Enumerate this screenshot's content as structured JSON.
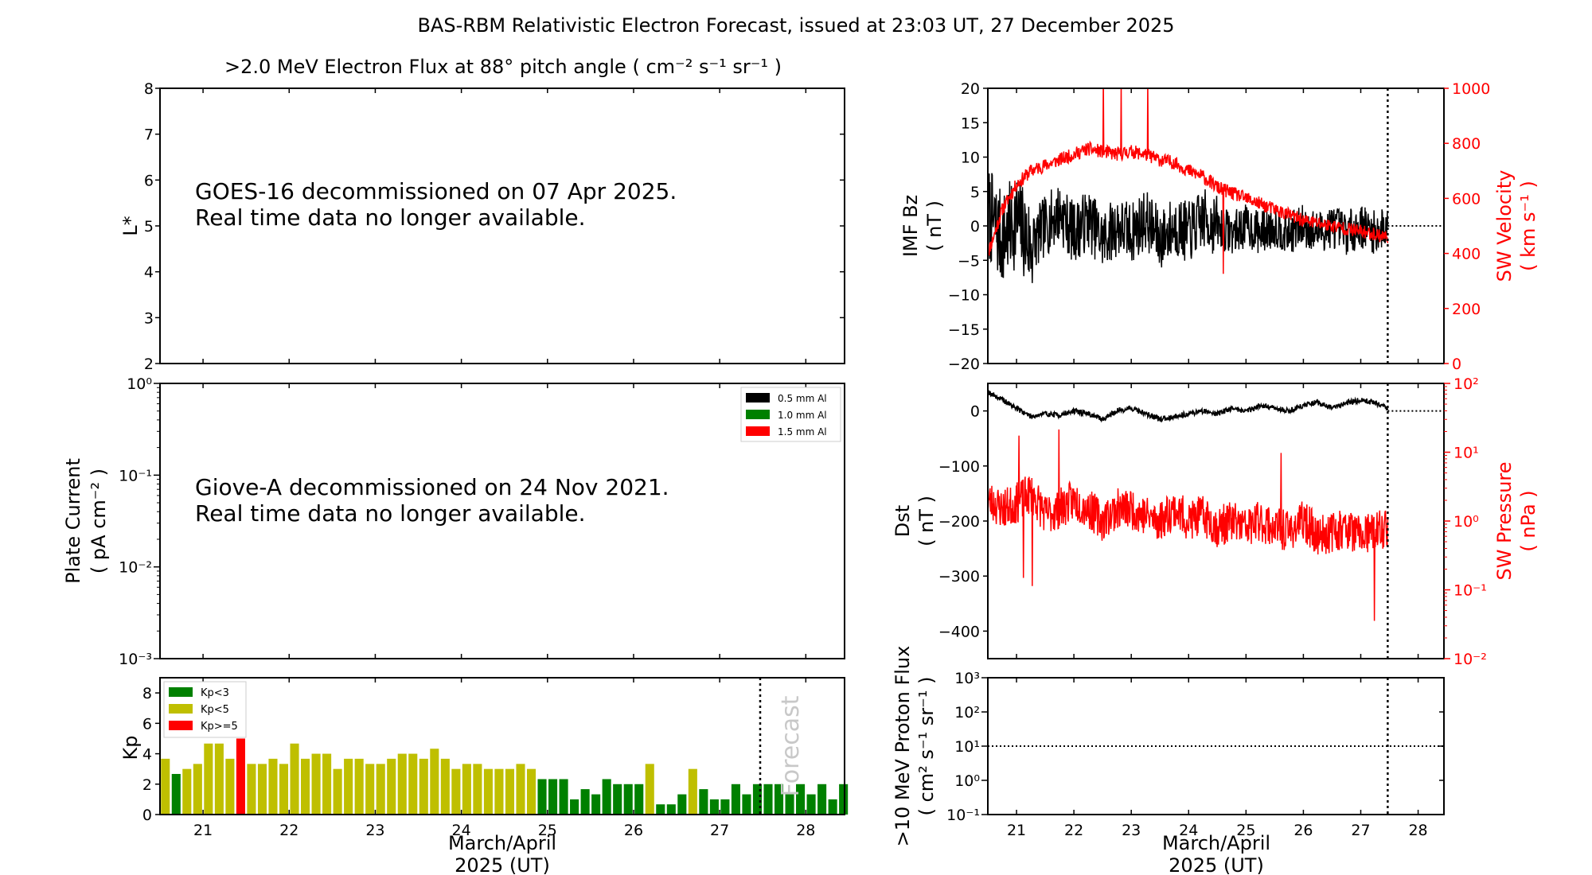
{
  "figure": {
    "title": "BAS-RBM Relativistic Electron Forecast, issued at 23:03 UT, 27 December 2025",
    "xlabel_line1": "March/April",
    "xlabel_line2": "2025 (UT)",
    "day_ticks": [
      "21",
      "22",
      "23",
      "24",
      "25",
      "26",
      "27",
      "28"
    ],
    "forecast_label": "Forecast"
  },
  "colors": {
    "kp_low": "#008000",
    "kp_mid": "#bfbf00",
    "kp_high": "#ff0000",
    "imf": "#000000",
    "sw": "#ff0000",
    "forecast_text": "#c8c8c8"
  },
  "chart_data": [
    {
      "id": "electron-flux",
      "type": "line",
      "title": ">2.0 MeV Electron Flux at 88° pitch angle ( cm⁻² s⁻¹ sr⁻¹ )",
      "ylabel": "L*",
      "ylim": [
        2,
        8
      ],
      "yticks": [
        "2",
        "3",
        "4",
        "5",
        "6",
        "7",
        "8"
      ],
      "xlim": [
        20.5,
        28.45
      ],
      "annotation": [
        "GOES-16 decommissioned on 07 Apr 2025.",
        "Real time data no longer available."
      ],
      "series": []
    },
    {
      "id": "plate-current",
      "type": "line",
      "ylabel": "Plate Current",
      "ylabel_units": "( pA cm⁻² )",
      "yscale": "log",
      "ylim": [
        0.001,
        1
      ],
      "yticks": [
        "10⁰",
        "10⁻¹",
        "10⁻²",
        "10⁻³"
      ],
      "legend": [
        "0.5 mm Al",
        "1.0 mm Al",
        "1.5 mm Al"
      ],
      "legend_colors": [
        "#000000",
        "#008000",
        "#ff0000"
      ],
      "legend_position": "top-right",
      "annotation": [
        "Giove-A decommissioned on 24 Nov 2021.",
        "Real time data no longer available."
      ],
      "series": []
    },
    {
      "id": "kp",
      "type": "bar",
      "ylabel": "Kp",
      "ylim": [
        0,
        9
      ],
      "yticks": [
        "0",
        "2",
        "4",
        "6",
        "8"
      ],
      "legend": [
        "Kp<3",
        "Kp<5",
        "Kp>=5"
      ],
      "legend_position": "top-left",
      "forecast_start": 27.47,
      "x": [
        20.5625,
        20.6875,
        20.8125,
        20.9375,
        21.0625,
        21.1875,
        21.3125,
        21.4375,
        21.5625,
        21.6875,
        21.8125,
        21.9375,
        22.0625,
        22.1875,
        22.3125,
        22.4375,
        22.5625,
        22.6875,
        22.8125,
        22.9375,
        23.0625,
        23.1875,
        23.3125,
        23.4375,
        23.5625,
        23.6875,
        23.8125,
        23.9375,
        24.0625,
        24.1875,
        24.3125,
        24.4375,
        24.5625,
        24.6875,
        24.8125,
        24.9375,
        25.0625,
        25.1875,
        25.3125,
        25.4375,
        25.5625,
        25.6875,
        25.8125,
        25.9375,
        26.0625,
        26.1875,
        26.3125,
        26.4375,
        26.5625,
        26.6875,
        26.8125,
        26.9375,
        27.0625,
        27.1875,
        27.3125,
        27.4375,
        27.5625,
        27.6875,
        27.8125,
        27.9375,
        28.0625,
        28.1875,
        28.3125,
        28.4375
      ],
      "values": [
        3.67,
        2.67,
        3.0,
        3.33,
        4.67,
        4.67,
        3.67,
        5.0,
        3.33,
        3.33,
        3.67,
        3.33,
        4.67,
        3.67,
        4.0,
        4.0,
        3.0,
        3.67,
        3.67,
        3.33,
        3.33,
        3.67,
        4.0,
        4.0,
        3.67,
        4.33,
        3.67,
        3.0,
        3.33,
        3.33,
        3.0,
        3.0,
        3.0,
        3.33,
        3.0,
        2.33,
        2.33,
        2.33,
        1.0,
        1.67,
        1.33,
        2.33,
        2.0,
        2.0,
        2.0,
        3.33,
        0.67,
        0.67,
        1.33,
        3.0,
        1.67,
        1.0,
        1.0,
        2.0,
        1.33,
        2.0,
        2.0,
        2.0,
        1.33,
        2.0,
        1.33,
        2.0,
        1.0,
        2.0
      ]
    },
    {
      "id": "imf-sw-velocity",
      "type": "line",
      "ylabel_left": "IMF Bz",
      "ylabel_left_units": "( nT )",
      "ylim_left": [
        -20,
        20
      ],
      "yticks_left": [
        "20",
        "15",
        "10",
        "5",
        "0",
        "−5",
        "−10",
        "−15",
        "−20"
      ],
      "ylabel_right": "SW Velocity",
      "ylabel_right_units": "( km s⁻¹ )",
      "ylim_right": [
        0,
        1000
      ],
      "yticks_right": [
        "1000",
        "800",
        "600",
        "400",
        "200",
        "0"
      ],
      "forecast_start": 27.47,
      "series": [
        {
          "axis": "left",
          "x": [
            20.5,
            20.75,
            21.0,
            21.25,
            21.5,
            21.75,
            22.0,
            22.25,
            22.5,
            22.75,
            23.0,
            23.25,
            23.5,
            23.75,
            24.0,
            24.25,
            24.5,
            24.75,
            25.0,
            25.25,
            25.5,
            25.75,
            26.0,
            26.25,
            26.5,
            26.75,
            27.0,
            27.25,
            27.47
          ],
          "values": [
            2,
            -2,
            1,
            -3,
            0,
            2,
            -1,
            1,
            -2,
            0,
            -1,
            1,
            -2,
            0,
            -1,
            1,
            0,
            -1,
            0,
            -1,
            0,
            -1,
            0,
            -1,
            0,
            -1,
            0,
            -1,
            0
          ]
        },
        {
          "axis": "right",
          "x": [
            20.5,
            20.6,
            20.75,
            21.0,
            21.25,
            21.5,
            21.75,
            22.0,
            22.25,
            22.5,
            22.75,
            23.0,
            23.25,
            23.5,
            23.75,
            24.0,
            24.25,
            24.5,
            24.75,
            25.0,
            25.25,
            25.5,
            25.75,
            26.0,
            26.25,
            26.5,
            26.75,
            27.0,
            27.25,
            27.47
          ],
          "values": [
            400,
            460,
            560,
            650,
            700,
            720,
            740,
            760,
            780,
            770,
            760,
            770,
            760,
            740,
            730,
            700,
            680,
            640,
            620,
            600,
            580,
            560,
            540,
            520,
            510,
            500,
            490,
            480,
            470,
            460
          ]
        }
      ]
    },
    {
      "id": "dst-sw-pressure",
      "type": "line",
      "ylabel_left": "Dst",
      "ylabel_left_units": "( nT )",
      "ylim_left": [
        -450,
        50
      ],
      "yticks_left": [
        "0",
        "−100",
        "−200",
        "−300",
        "−400"
      ],
      "ylabel_right": "SW Pressure",
      "ylabel_right_units": "( nPa )",
      "yscale_right": "log",
      "ylim_right": [
        0.01,
        100
      ],
      "yticks_right": [
        "10²",
        "10¹",
        "10⁰",
        "10⁻¹",
        "10⁻²"
      ],
      "forecast_start": 27.47,
      "series": [
        {
          "axis": "left",
          "x": [
            20.5,
            20.75,
            21.0,
            21.25,
            21.5,
            21.75,
            22.0,
            22.25,
            22.5,
            22.75,
            23.0,
            23.25,
            23.5,
            23.75,
            24.0,
            24.25,
            24.5,
            24.75,
            25.0,
            25.25,
            25.5,
            25.75,
            26.0,
            26.25,
            26.5,
            26.75,
            27.0,
            27.25,
            27.47
          ],
          "values": [
            35,
            20,
            5,
            -10,
            -5,
            -8,
            0,
            -5,
            -15,
            0,
            5,
            -5,
            -15,
            -10,
            -5,
            0,
            -5,
            5,
            0,
            10,
            5,
            0,
            10,
            15,
            5,
            15,
            20,
            15,
            5
          ]
        },
        {
          "axis": "right",
          "x": [
            20.5,
            20.75,
            21.0,
            21.25,
            21.5,
            21.75,
            22.0,
            22.25,
            22.5,
            22.75,
            23.0,
            23.25,
            23.5,
            23.75,
            24.0,
            24.25,
            24.5,
            24.75,
            25.0,
            25.25,
            25.5,
            25.75,
            26.0,
            26.25,
            26.5,
            26.75,
            27.0,
            27.25,
            27.47
          ],
          "values": [
            2.0,
            1.5,
            1.8,
            2.5,
            1.2,
            1.5,
            2.0,
            1.5,
            1.0,
            1.5,
            1.5,
            1.2,
            1.0,
            1.5,
            1.0,
            1.2,
            0.8,
            1.0,
            0.8,
            1.0,
            0.8,
            0.7,
            1.0,
            0.6,
            0.7,
            0.8,
            0.6,
            0.7,
            0.8
          ]
        }
      ]
    },
    {
      "id": "proton-flux",
      "type": "line",
      "ylabel": ">10 MeV Proton Flux",
      "ylabel_units": "( cm² s⁻¹ sr⁻¹ )",
      "yscale": "log",
      "ylim": [
        0.1,
        1000
      ],
      "yticks": [
        "10³",
        "10²",
        "10¹",
        "10⁰",
        "10⁻¹"
      ],
      "threshold": 10,
      "forecast_start": 27.47,
      "series": []
    }
  ]
}
